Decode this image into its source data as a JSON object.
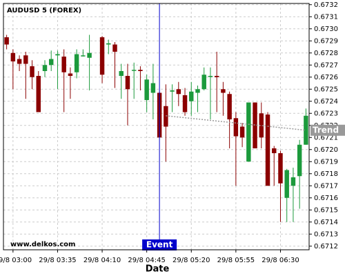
{
  "chart_data": {
    "type": "candlestick",
    "title": "AUDUSD 5 (FOREX)",
    "watermark": "www.delkos.com",
    "xlabel": "Date",
    "x": [
      "29/8 02:55",
      "29/8 03:00",
      "29/8 03:05",
      "29/8 03:10",
      "29/8 03:15",
      "29/8 03:20",
      "29/8 03:25",
      "29/8 03:30",
      "29/8 03:35",
      "29/8 03:40",
      "29/8 03:45",
      "29/8 03:50",
      "29/8 03:55",
      "29/8 04:00",
      "29/8 04:05",
      "29/8 04:10",
      "29/8 04:15",
      "29/8 04:20",
      "29/8 04:25",
      "29/8 04:30",
      "29/8 04:35",
      "29/8 04:40",
      "29/8 04:45",
      "29/8 04:50",
      "29/8 04:55",
      "29/8 05:00",
      "29/8 05:05",
      "29/8 05:10",
      "29/8 05:15",
      "29/8 05:20",
      "29/8 05:25",
      "29/8 05:30",
      "29/8 05:35",
      "29/8 05:40",
      "29/8 05:45",
      "29/8 05:50",
      "29/8 05:55",
      "29/8 06:00",
      "29/8 06:05",
      "29/8 06:10",
      "29/8 06:15",
      "29/8 06:20",
      "29/8 06:25",
      "29/8 06:30",
      "29/8 06:35",
      "29/8 06:40",
      "29/8 06:45",
      "29/8 06:50"
    ],
    "open": [
      0.67293,
      0.6728,
      0.67275,
      0.67278,
      0.67269,
      0.67261,
      0.67265,
      0.6727,
      0.67278,
      0.67277,
      0.67263,
      0.67264,
      0.67278,
      0.67276,
      null,
      0.67293,
      0.67287,
      0.67287,
      0.67261,
      0.67261,
      0.67266,
      0.67266,
      0.67241,
      0.67247,
      0.67247,
      0.67236,
      0.67248,
      0.6725,
      0.67245,
      0.6724,
      0.67247,
      0.6725,
      0.67261,
      0.67261,
      0.6725,
      0.67246,
      0.67226,
      0.67219,
      0.6719,
      0.67239,
      0.6723,
      0.67229,
      0.67201,
      0.67197,
      0.6716,
      0.6717,
      0.67178,
      0.67204
    ],
    "high": [
      0.67295,
      0.67283,
      0.67278,
      0.67281,
      0.67274,
      0.67265,
      0.67274,
      0.67282,
      0.67282,
      0.67283,
      0.67268,
      0.67283,
      0.67283,
      0.67295,
      null,
      0.67294,
      0.67291,
      0.67289,
      0.67271,
      0.67271,
      0.67272,
      0.67269,
      0.67262,
      0.67271,
      0.67248,
      0.67254,
      0.67254,
      0.67256,
      0.67251,
      0.67256,
      0.67253,
      0.67268,
      0.67268,
      0.67281,
      0.67256,
      0.67248,
      0.67231,
      0.67222,
      0.67239,
      0.67239,
      0.67239,
      0.67231,
      0.67203,
      0.67199,
      0.67184,
      0.67185,
      0.67208,
      0.67234
    ],
    "low": [
      0.67283,
      0.6725,
      0.67265,
      0.67242,
      0.6725,
      0.67231,
      0.6726,
      0.67265,
      0.6725,
      0.67231,
      0.67242,
      0.67259,
      0.67277,
      0.67249,
      null,
      0.67255,
      0.67279,
      0.67251,
      0.67242,
      0.6722,
      0.67242,
      0.67249,
      0.67231,
      0.67225,
      0.6721,
      0.6719,
      0.67231,
      0.67236,
      0.67228,
      0.67228,
      0.67231,
      0.67249,
      0.67225,
      0.67231,
      0.67228,
      0.67201,
      0.6717,
      0.67202,
      0.6719,
      0.67201,
      0.67201,
      0.6717,
      0.6717,
      0.6714,
      0.6714,
      0.6714,
      0.67151,
      0.67204
    ],
    "close": [
      0.67287,
      0.67273,
      0.67271,
      0.67271,
      0.6726,
      0.67231,
      0.6727,
      0.67275,
      0.67279,
      0.67264,
      0.67261,
      0.67279,
      0.67278,
      0.6728,
      null,
      0.67262,
      0.67288,
      0.67281,
      0.67265,
      0.6725,
      0.67266,
      0.67265,
      0.67258,
      0.67255,
      0.6721,
      0.67219,
      0.67249,
      0.67246,
      0.67231,
      0.67248,
      0.6725,
      0.67262,
      0.67261,
      0.6726,
      0.67247,
      0.67225,
      0.67211,
      0.6721,
      0.67239,
      0.67201,
      0.6721,
      0.6717,
      0.67197,
      0.67172,
      0.67183,
      0.67177,
      0.67204,
      0.67228
    ],
    "up_color": "#1c9a3c",
    "down_color": "#8b0000",
    "ylim": [
      0.67117,
      0.67321
    ],
    "yticks": [
      0.6712,
      0.6713,
      0.6714,
      0.6715,
      0.6716,
      0.6717,
      0.6718,
      0.6719,
      {
        "value": 0.672,
        "label": "0.6720"
      },
      0.6721,
      0.6722,
      0.6723,
      0.6724,
      0.6725,
      0.6726,
      0.6727,
      0.6728,
      0.6729,
      {
        "value": 0.673,
        "label": "0.6730"
      },
      0.6731,
      0.6732
    ],
    "xticks": [
      "29/8 03:00",
      "29/8 03:35",
      "29/8 04:10",
      "29/8 04:45",
      "29/8 05:20",
      "29/8 05:55",
      "29/8 06:30"
    ],
    "grid": true,
    "event": {
      "x": "29/8 04:55",
      "label": "Event",
      "color": "#0000cc"
    },
    "trend": {
      "label": "Trend",
      "x": [
        "29/8 05:00",
        "29/8 06:50"
      ],
      "y": [
        0.67228,
        0.67216
      ],
      "color": "#999999"
    }
  }
}
